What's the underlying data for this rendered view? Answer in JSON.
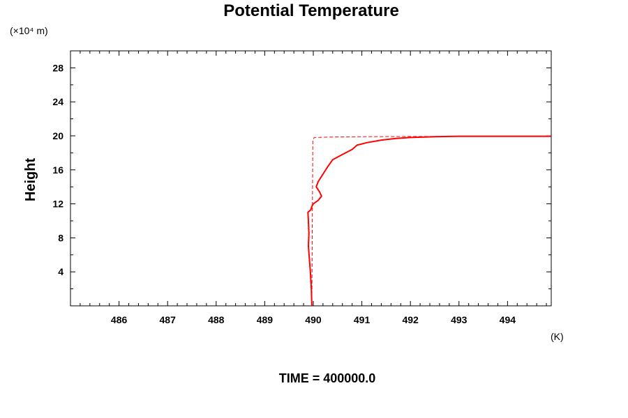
{
  "chart_data": {
    "type": "line",
    "title": "Potential Temperature",
    "xlabel": "",
    "x_unit": "(K)",
    "ylabel": "Height",
    "y_multiplier_label": "(×10⁴ m)",
    "footer": "TIME = 400000.0",
    "xlim": [
      485,
      494.9
    ],
    "ylim": [
      0,
      30
    ],
    "x_ticks": [
      486,
      487,
      488,
      489,
      490,
      491,
      492,
      493,
      494
    ],
    "y_ticks": [
      4,
      8,
      12,
      16,
      20,
      24,
      28
    ],
    "grid": false,
    "legend": "none",
    "series": [
      {
        "style": "solid",
        "color": "#ff0000",
        "points": [
          [
            489.97,
            0.0
          ],
          [
            489.96,
            2.0
          ],
          [
            489.94,
            4.0
          ],
          [
            489.92,
            5.5
          ],
          [
            489.9,
            7.0
          ],
          [
            489.91,
            8.5
          ],
          [
            489.9,
            10.0
          ],
          [
            489.89,
            11.0
          ],
          [
            489.95,
            11.3
          ],
          [
            489.97,
            11.7
          ],
          [
            490.0,
            12.0
          ],
          [
            490.1,
            12.4
          ],
          [
            490.17,
            12.9
          ],
          [
            490.13,
            13.4
          ],
          [
            490.06,
            14.0
          ],
          [
            490.1,
            14.6
          ],
          [
            490.2,
            15.5
          ],
          [
            490.3,
            16.4
          ],
          [
            490.4,
            17.2
          ],
          [
            490.6,
            17.8
          ],
          [
            490.8,
            18.4
          ],
          [
            490.9,
            18.9
          ],
          [
            491.1,
            19.2
          ],
          [
            491.4,
            19.5
          ],
          [
            491.7,
            19.7
          ],
          [
            492.0,
            19.8
          ],
          [
            492.5,
            19.9
          ],
          [
            493.0,
            19.95
          ],
          [
            494.0,
            19.95
          ],
          [
            494.9,
            19.95
          ]
        ]
      },
      {
        "style": "dashed",
        "color": "#ff0000",
        "points": [
          [
            489.97,
            0.0
          ],
          [
            489.99,
            19.5
          ],
          [
            490.02,
            19.8
          ],
          [
            490.3,
            19.85
          ],
          [
            491.0,
            19.9
          ],
          [
            492.0,
            19.93
          ],
          [
            494.9,
            19.95
          ]
        ]
      }
    ]
  }
}
